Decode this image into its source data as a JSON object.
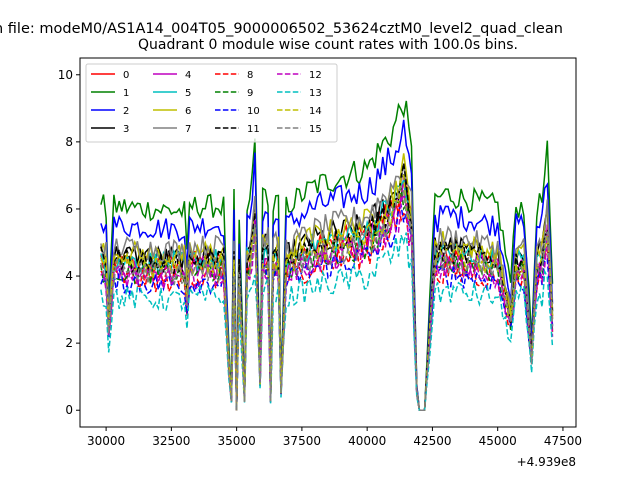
{
  "figure": {
    "suptitle": "n file: modeM0/AS1A14_004T05_9000006502_53624cztM0_level2_quad_clean",
    "title": "Quadrant 0 module wise count rates with 100.0s bins."
  },
  "chart_data": {
    "type": "line",
    "title": "Quadrant 0 module wise count rates with 100.0s bins.",
    "xlabel": "",
    "ylabel": "",
    "x_offset_label": "+4.939e8",
    "xlim": [
      29000,
      48000
    ],
    "ylim": [
      -0.5,
      10.5
    ],
    "xticks": [
      30000,
      32500,
      35000,
      37500,
      40000,
      42500,
      45000,
      47500
    ],
    "xtick_labels": [
      "30000",
      "32500",
      "35000",
      "37500",
      "40000",
      "42500",
      "45000",
      "47500"
    ],
    "yticks": [
      0,
      2,
      4,
      6,
      8,
      10
    ],
    "ytick_labels": [
      "0",
      "2",
      "4",
      "6",
      "8",
      "10"
    ],
    "grid": false,
    "legend": {
      "position": "top-left",
      "columns": 4
    },
    "x_range": [
      29800,
      47100
    ],
    "key_points": {
      "x": [
        29800,
        30000,
        30100,
        30300,
        33000,
        33100,
        33200,
        34500,
        34700,
        34800,
        34900,
        35000,
        35100,
        35300,
        35400,
        35500,
        35700,
        35900,
        36000,
        36200,
        36300,
        36400,
        36600,
        36700,
        36900,
        38000,
        40000,
        41000,
        41400,
        41700,
        41900,
        42000,
        42200,
        42600,
        42700,
        42900,
        45000,
        45500,
        45700,
        46000,
        46300,
        46500,
        46700,
        46900,
        47100
      ],
      "f": [
        0.82,
        0.78,
        0.45,
        0.8,
        0.78,
        0.6,
        0.8,
        0.8,
        0.25,
        0.05,
        0.82,
        0.0,
        0.75,
        0.05,
        0.8,
        0.8,
        1.05,
        0.15,
        0.83,
        0.85,
        0.05,
        0.8,
        0.82,
        0.1,
        0.8,
        0.88,
        0.95,
        1.1,
        1.22,
        1.0,
        0.1,
        0.0,
        0.0,
        0.85,
        0.82,
        0.85,
        0.8,
        0.5,
        0.8,
        0.8,
        0.28,
        0.8,
        0.82,
        1.0,
        0.48
      ]
    },
    "series": [
      {
        "name": "0",
        "color": "#ff0000",
        "style": "solid",
        "level": 5.5
      },
      {
        "name": "1",
        "color": "#008000",
        "style": "solid",
        "level": 7.6
      },
      {
        "name": "2",
        "color": "#0000ff",
        "style": "solid",
        "level": 6.9
      },
      {
        "name": "3",
        "color": "#000000",
        "style": "solid",
        "level": 5.8
      },
      {
        "name": "4",
        "color": "#bf00bf",
        "style": "solid",
        "level": 5.3
      },
      {
        "name": "5",
        "color": "#00bfbf",
        "style": "solid",
        "level": 5.6
      },
      {
        "name": "6",
        "color": "#bfbf00",
        "style": "solid",
        "level": 5.9
      },
      {
        "name": "7",
        "color": "#808080",
        "style": "solid",
        "level": 6.1
      },
      {
        "name": "8",
        "color": "#ff0000",
        "style": "dashed",
        "level": 4.9
      },
      {
        "name": "9",
        "color": "#008000",
        "style": "dashed",
        "level": 5.2
      },
      {
        "name": "10",
        "color": "#0000ff",
        "style": "dashed",
        "level": 4.8
      },
      {
        "name": "11",
        "color": "#000000",
        "style": "dashed",
        "level": 5.6
      },
      {
        "name": "12",
        "color": "#bf00bf",
        "style": "dashed",
        "level": 5.0
      },
      {
        "name": "13",
        "color": "#00bfbf",
        "style": "dashed",
        "level": 4.2
      },
      {
        "name": "14",
        "color": "#bfbf00",
        "style": "dashed",
        "level": 5.4
      },
      {
        "name": "15",
        "color": "#808080",
        "style": "dashed",
        "level": 5.2
      }
    ]
  }
}
